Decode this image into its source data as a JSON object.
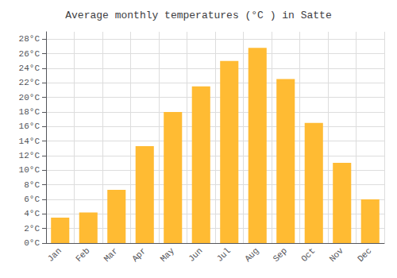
{
  "chart_data": {
    "type": "bar",
    "title": "Average monthly temperatures (°C ) in Satte",
    "categories": [
      "Jan",
      "Feb",
      "Mar",
      "Apr",
      "May",
      "Jun",
      "Jul",
      "Aug",
      "Sep",
      "Oct",
      "Nov",
      "Dec"
    ],
    "values": [
      3.5,
      4.2,
      7.3,
      13.3,
      18.0,
      21.5,
      25.0,
      26.8,
      22.5,
      16.5,
      11.0,
      6.0
    ],
    "color": "#FFBB33",
    "ylim": [
      0,
      29
    ],
    "yticks": [
      {
        "value": 0,
        "label": "0°C"
      },
      {
        "value": 2,
        "label": "2°C"
      },
      {
        "value": 4,
        "label": "4°C"
      },
      {
        "value": 6,
        "label": "6°C"
      },
      {
        "value": 8,
        "label": "8°C"
      },
      {
        "value": 10,
        "label": "10°C"
      },
      {
        "value": 12,
        "label": "12°C"
      },
      {
        "value": 14,
        "label": "14°C"
      },
      {
        "value": 16,
        "label": "16°C"
      },
      {
        "value": 18,
        "label": "18°C"
      },
      {
        "value": 20,
        "label": "20°C"
      },
      {
        "value": 22,
        "label": "22°C"
      },
      {
        "value": 24,
        "label": "24°C"
      },
      {
        "value": 26,
        "label": "26°C"
      },
      {
        "value": 28,
        "label": "28°C"
      }
    ],
    "grid": true
  }
}
